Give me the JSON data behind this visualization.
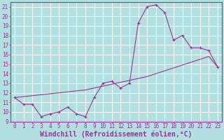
{
  "xlabel": "Windchill (Refroidissement éolien,°C)",
  "bg_color": "#b2e0e0",
  "line_color": "#993399",
  "grid_color": "#ffffff",
  "xlim": [
    -0.5,
    23.5
  ],
  "ylim": [
    9,
    21.5
  ],
  "yticks": [
    9,
    10,
    11,
    12,
    13,
    14,
    15,
    16,
    17,
    18,
    19,
    20,
    21
  ],
  "xticks": [
    0,
    1,
    2,
    3,
    4,
    5,
    6,
    7,
    8,
    9,
    10,
    11,
    12,
    13,
    14,
    15,
    16,
    17,
    18,
    19,
    20,
    21,
    22,
    23
  ],
  "line1_x": [
    0,
    1,
    2,
    3,
    4,
    5,
    6,
    7,
    8,
    9,
    10,
    11,
    12,
    13,
    14,
    15,
    16,
    17,
    18,
    19,
    20,
    21,
    22,
    23
  ],
  "line1_y": [
    11.5,
    10.8,
    10.8,
    9.5,
    9.8,
    10.0,
    10.5,
    9.8,
    9.5,
    11.5,
    13.0,
    13.2,
    12.5,
    13.0,
    19.3,
    21.0,
    21.2,
    20.4,
    17.5,
    18.0,
    16.7,
    16.7,
    16.4,
    14.7
  ],
  "line2_x": [
    0,
    1,
    2,
    3,
    4,
    5,
    6,
    7,
    8,
    9,
    10,
    11,
    12,
    13,
    14,
    15,
    16,
    17,
    18,
    19,
    20,
    21,
    22,
    23
  ],
  "line2_y": [
    11.5,
    11.6,
    11.7,
    11.8,
    11.9,
    12.0,
    12.1,
    12.2,
    12.3,
    12.5,
    12.7,
    12.9,
    13.1,
    13.3,
    13.5,
    13.7,
    14.0,
    14.3,
    14.6,
    14.9,
    15.2,
    15.5,
    15.8,
    14.7
  ],
  "font_family": "monospace",
  "tick_fontsize": 5.5,
  "xlabel_fontsize": 7.0
}
